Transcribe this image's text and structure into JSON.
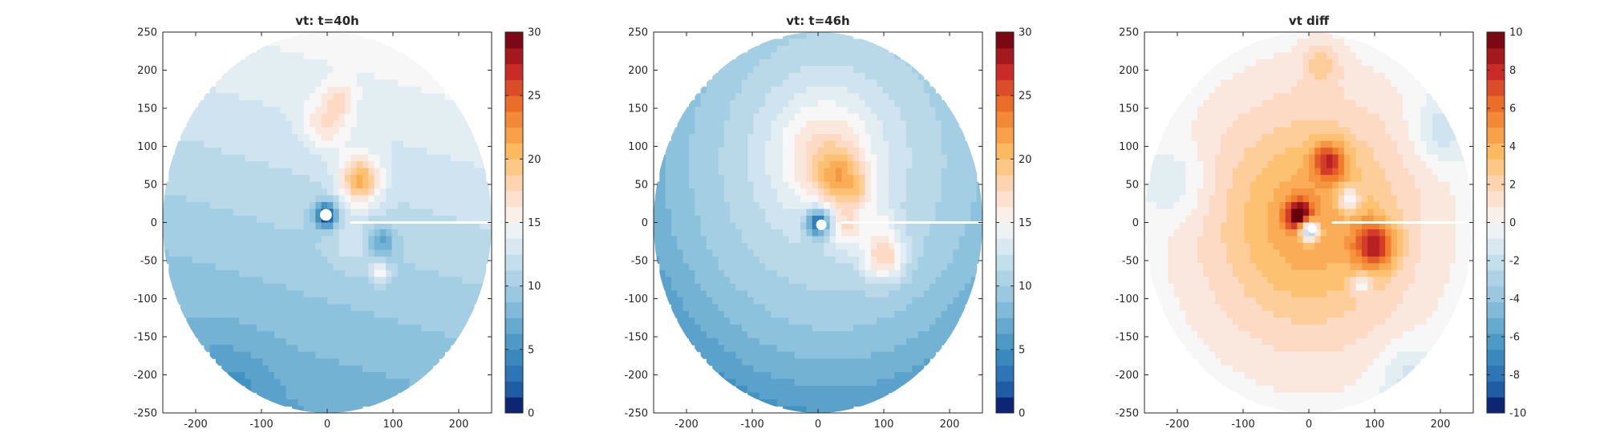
{
  "chart_data": [
    {
      "type": "heatmap",
      "title": "vt: t=40h",
      "xlabel": "",
      "ylabel": "",
      "xlim": [
        -250,
        250
      ],
      "ylim": [
        -250,
        250
      ],
      "xticks": [
        "-200",
        "-100",
        "0",
        "100",
        "200"
      ],
      "yticks": [
        "250",
        "200",
        "150",
        "100",
        "50",
        "0",
        "-50",
        "-100",
        "-150",
        "-200",
        "-250"
      ],
      "colorbar": {
        "min": 0,
        "max": 30,
        "ticks": [
          "30",
          "25",
          "20",
          "15",
          "10",
          "5",
          "0"
        ]
      },
      "field": {
        "base": 11,
        "gradient": {
          "dx": 0.004,
          "dy": 0.016
        },
        "features": [
          {
            "x": -2,
            "y": 10,
            "amp": -11,
            "sigma": 12
          },
          {
            "x": 0,
            "y": 130,
            "amp": 4,
            "sigma": 25
          },
          {
            "x": 50,
            "y": 55,
            "amp": 9,
            "sigma": 22
          },
          {
            "x": 80,
            "y": -25,
            "amp": -5,
            "sigma": 15
          },
          {
            "x": 80,
            "y": -65,
            "amp": 5,
            "sigma": 10
          },
          {
            "x": 20,
            "y": 165,
            "amp": 3,
            "sigma": 14
          },
          {
            "x": 40,
            "y": -30,
            "amp": 2,
            "sigma": 25
          },
          {
            "x": -150,
            "y": -220,
            "amp": -2,
            "sigma": 45
          }
        ],
        "hole": {
          "x": -2,
          "y": 10,
          "r": 9
        }
      }
    },
    {
      "type": "heatmap",
      "title": "vt: t=46h",
      "xlabel": "",
      "ylabel": "",
      "xlim": [
        -250,
        250
      ],
      "ylim": [
        -250,
        250
      ],
      "xticks": [
        "-200",
        "-100",
        "0",
        "100",
        "200"
      ],
      "yticks": [
        "250",
        "200",
        "150",
        "100",
        "50",
        "0",
        "-50",
        "-100",
        "-150",
        "-200",
        "-250"
      ],
      "colorbar": {
        "min": 0,
        "max": 30,
        "ticks": [
          "30",
          "25",
          "20",
          "15",
          "10",
          "5",
          "0"
        ]
      },
      "field": {
        "base": 12,
        "gradient": {
          "dx": 0.003,
          "dy": 0.01
        },
        "radial": {
          "amp": -4,
          "r0": 250
        },
        "features": [
          {
            "x": 0,
            "y": 0,
            "amp": -11,
            "sigma": 13
          },
          {
            "x": 10,
            "y": 90,
            "amp": 5,
            "sigma": 55
          },
          {
            "x": 30,
            "y": 60,
            "amp": 5,
            "sigma": 25
          },
          {
            "x": 100,
            "y": -45,
            "amp": 7,
            "sigma": 22
          },
          {
            "x": 45,
            "y": -10,
            "amp": 4,
            "sigma": 18
          },
          {
            "x": 60,
            "y": 40,
            "amp": 3,
            "sigma": 20
          },
          {
            "x": 100,
            "y": 0,
            "amp": 2,
            "sigma": 15
          }
        ],
        "hole": {
          "x": 5,
          "y": -3,
          "r": 8
        }
      }
    },
    {
      "type": "heatmap",
      "title": "vt diff",
      "xlabel": "",
      "ylabel": "",
      "xlim": [
        -250,
        250
      ],
      "ylim": [
        -250,
        250
      ],
      "xticks": [
        "-200",
        "-100",
        "0",
        "100",
        "200"
      ],
      "yticks": [
        "250",
        "200",
        "150",
        "100",
        "50",
        "0",
        "-50",
        "-100",
        "-150",
        "-200",
        "-250"
      ],
      "colorbar": {
        "min": -10,
        "max": 10,
        "ticks": [
          "10",
          "8",
          "6",
          "4",
          "2",
          "0",
          "-2",
          "-4",
          "-6",
          "-8",
          "-10"
        ]
      },
      "field": {
        "base": 1.5,
        "radial": {
          "amp": -1.5,
          "r0": 250
        },
        "features": [
          {
            "x": 0,
            "y": 0,
            "amp": 3,
            "sigma": 90
          },
          {
            "x": -15,
            "y": 10,
            "amp": 7,
            "sigma": 14
          },
          {
            "x": 0,
            "y": -10,
            "amp": -9,
            "sigma": 10
          },
          {
            "x": 100,
            "y": -30,
            "amp": 6,
            "sigma": 22
          },
          {
            "x": 30,
            "y": 80,
            "amp": 5,
            "sigma": 18
          },
          {
            "x": 60,
            "y": 30,
            "amp": -4,
            "sigma": 12
          },
          {
            "x": 20,
            "y": 210,
            "amp": 2,
            "sigma": 20
          },
          {
            "x": 200,
            "y": 120,
            "amp": -2,
            "sigma": 30
          },
          {
            "x": -200,
            "y": 50,
            "amp": -1.5,
            "sigma": 35
          },
          {
            "x": 150,
            "y": -200,
            "amp": -1.5,
            "sigma": 30
          },
          {
            "x": 80,
            "y": -80,
            "amp": -3,
            "sigma": 10
          }
        ],
        "hole": {
          "x": 5,
          "y": -8,
          "r": 7
        }
      }
    }
  ]
}
